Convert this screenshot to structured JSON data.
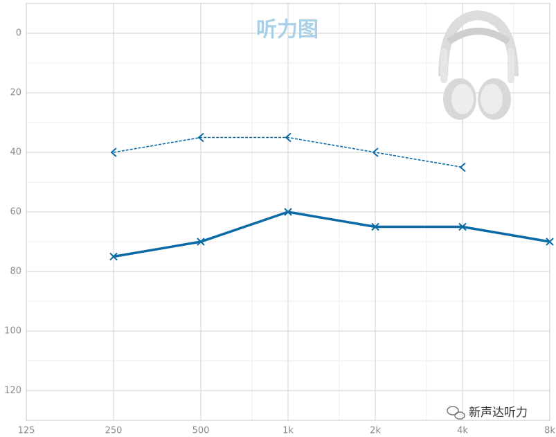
{
  "chart_data": {
    "type": "line",
    "title": "听力图",
    "x": [
      250,
      500,
      1000,
      2000,
      4000,
      8000
    ],
    "xlim": [
      125,
      8000
    ],
    "xlog": true,
    "xticks": [
      125,
      250,
      500,
      {
        "value": 1000,
        "label": "1k"
      },
      {
        "value": 2000,
        "label": "2k"
      },
      {
        "value": 4000,
        "label": "4k"
      },
      {
        "value": 8000,
        "label": "8k"
      }
    ],
    "xminor": [
      750,
      1500,
      3000,
      6000
    ],
    "ylim": [
      -10,
      130
    ],
    "yinverted": true,
    "yticks": [
      0,
      20,
      40,
      60,
      80,
      100,
      120
    ],
    "yminor": [
      10,
      30,
      50,
      70,
      90,
      110
    ],
    "grid": true,
    "series": [
      {
        "color": "#0a6aa6",
        "marker": "x",
        "dashed": false,
        "values": [
          75,
          70,
          60,
          65,
          65,
          70
        ]
      },
      {
        "color": "#0a6aa6",
        "marker": "<",
        "dashed": true,
        "values": [
          40,
          35,
          35,
          40,
          45,
          null
        ]
      }
    ],
    "watermark": "新声达听力"
  }
}
